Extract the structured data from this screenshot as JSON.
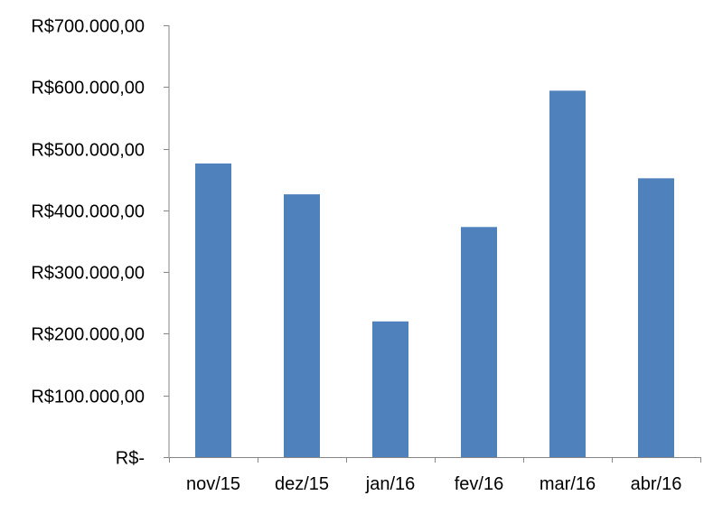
{
  "chart_data": {
    "type": "bar",
    "title": "",
    "xlabel": "",
    "ylabel": "",
    "categories": [
      "nov/15",
      "dez/15",
      "jan/16",
      "fev/16",
      "mar/16",
      "abr/16"
    ],
    "values": [
      476000,
      426000,
      220000,
      373000,
      594000,
      452000
    ],
    "ylim": [
      0,
      700000
    ],
    "y_ticks": [
      0,
      100000,
      200000,
      300000,
      400000,
      500000,
      600000,
      700000
    ],
    "y_tick_labels": [
      "R$-",
      "R$100.000,00",
      "R$200.000,00",
      "R$300.000,00",
      "R$400.000,00",
      "R$500.000,00",
      "R$600.000,00",
      "R$700.000,00"
    ],
    "grid": false,
    "legend": "none",
    "bar_color": "#4f81bd",
    "axis_color": "#868686"
  }
}
